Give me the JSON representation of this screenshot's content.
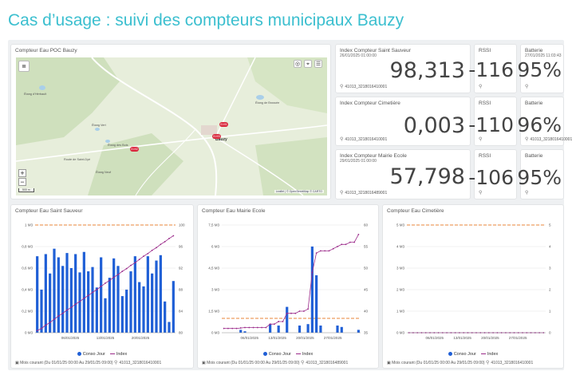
{
  "page_title": "Cas d’usage : suivi des compteurs municipaux Bauzy",
  "map_panel": {
    "title": "Compteur Eau POC Bauzy",
    "labels": [
      "Étang d'Hérbault",
      "Étang Vert",
      "Étang des Bois",
      "Étang Neuf",
      "Étang de Brossée",
      "Bauzy",
      "Route de Saint-Dyé"
    ],
    "markers": [
      "01/01",
      "01/03",
      "01/02"
    ],
    "zoom_in": "+",
    "zoom_out": "−",
    "scale": "500 m",
    "attribution": "Leaflet | © OpenStreetMap © CARTO",
    "controls": [
      "◎",
      "⌖",
      "☰"
    ]
  },
  "counters": [
    {
      "title": "Index Compteur Saint Sauveur",
      "date": "26/01/2025 01:00:00",
      "value": "98,313",
      "device": "41013_3218016410001"
    },
    {
      "title": "Index Compteur Cimetière",
      "date": "",
      "value": "0,003",
      "device": "41013_3218016410001"
    },
    {
      "title": "Index Compteur Mairie Ecole",
      "date": "29/01/2025 01:00:00",
      "value": "57,798",
      "device": "41013_3218016489001"
    }
  ],
  "rssi": [
    {
      "title": "RSSI",
      "value": "-116"
    },
    {
      "title": "RSSI",
      "value": "-110"
    },
    {
      "title": "RSSI",
      "value": "-106"
    }
  ],
  "battery": [
    {
      "title": "Batterie",
      "date": "27/01/2025 11:03:43",
      "value": "95%",
      "device": ""
    },
    {
      "title": "Batterie",
      "date": "",
      "value": "96%",
      "device": "41013_3218016410001"
    },
    {
      "title": "Batterie",
      "date": "",
      "value": "95%",
      "device": ""
    }
  ],
  "legend": {
    "bar_label": "Conso Jour",
    "line_label": "Index"
  },
  "chart_data": [
    {
      "type": "bar",
      "title": "Compteur Eau Saint Sauveur",
      "x_ticks": [
        "06/01/2025",
        "13/01/2025",
        "20/01/2025"
      ],
      "y_left_ticks": [
        "0 M3",
        "0,2 M3",
        "0,4 M3",
        "0,6 M3",
        "0,8 M3",
        "1 M3"
      ],
      "y_right_ticks": [
        "80",
        "84",
        "88",
        "92",
        "96",
        "100"
      ],
      "ylim_left": [
        0,
        1
      ],
      "ylim_right": [
        80,
        100
      ],
      "threshold": 1,
      "series": [
        {
          "name": "Conso Jour",
          "values": [
            0.71,
            0.4,
            0.73,
            0.55,
            0.78,
            0.7,
            0.62,
            0.74,
            0.6,
            0.73,
            0.56,
            0.75,
            0.57,
            0.61,
            0.42,
            0.7,
            0.32,
            0.51,
            0.69,
            0.62,
            0.34,
            0.4,
            0.57,
            0.71,
            0.47,
            0.43,
            0.71,
            0.55,
            0.67,
            0.72,
            0.29,
            0.1,
            0.48
          ]
        },
        {
          "name": "Index",
          "values": [
            80.4,
            80.8,
            81.4,
            81.9,
            82.5,
            83.1,
            83.6,
            84.2,
            84.7,
            85.3,
            85.8,
            86.4,
            86.9,
            87.5,
            88.0,
            88.6,
            89.2,
            89.7,
            90.3,
            90.8,
            91.4,
            91.9,
            92.5,
            93.0,
            93.6,
            94.2,
            94.7,
            95.3,
            95.8,
            96.4,
            96.9,
            97.5,
            98.0
          ]
        }
      ]
    },
    {
      "type": "bar",
      "title": "Compteur Eau Mairie Ecole",
      "x_ticks": [
        "06/01/2025",
        "13/01/2025",
        "20/01/2025",
        "27/01/2025"
      ],
      "y_left_ticks": [
        "0 M3",
        "1,5 M3",
        "3 M3",
        "4,5 M3",
        "6 M3",
        "7,5 M3"
      ],
      "y_right_ticks": [
        "35",
        "40",
        "45",
        "50",
        "55",
        "60"
      ],
      "ylim_left": [
        0,
        7.5
      ],
      "ylim_right": [
        35,
        60
      ],
      "threshold": 1,
      "series": [
        {
          "name": "Conso Jour",
          "values": [
            0,
            0,
            0,
            0,
            0.2,
            0.1,
            0,
            0,
            0,
            0,
            0,
            0.6,
            0,
            0.5,
            0,
            1.8,
            0,
            0,
            0.5,
            0,
            0.6,
            6.0,
            4.0,
            0.5,
            0,
            0,
            0,
            0.5,
            0.4,
            0,
            0,
            0,
            0.2
          ]
        },
        {
          "name": "Index",
          "values": [
            36,
            36,
            36,
            36,
            36.1,
            36.2,
            36.2,
            36.2,
            36.2,
            36.2,
            36.2,
            37,
            37,
            37.6,
            37.6,
            39.5,
            39.5,
            39.5,
            40,
            40,
            40.5,
            49,
            53.5,
            54,
            54,
            54,
            54.5,
            55,
            55.5,
            55.5,
            56,
            56,
            57.8
          ]
        }
      ]
    },
    {
      "type": "bar",
      "title": "Compteur Eau Cimetière",
      "x_ticks": [
        "06/01/2025",
        "13/01/2025",
        "20/01/2025",
        "27/01/2025"
      ],
      "y_left_ticks": [
        "0 M3",
        "1 M3",
        "2 M3",
        "3 M3",
        "4 M3",
        "5 M3"
      ],
      "y_right_ticks": [
        "0",
        "1",
        "2",
        "3",
        "4",
        "5"
      ],
      "ylim_left": [
        0,
        5
      ],
      "ylim_right": [
        0,
        5
      ],
      "threshold": 5,
      "series": [
        {
          "name": "Conso Jour",
          "values": [
            0,
            0,
            0,
            0,
            0,
            0,
            0,
            0,
            0,
            0,
            0,
            0,
            0,
            0,
            0,
            0,
            0,
            0,
            0,
            0,
            0,
            0,
            0,
            0,
            0,
            0,
            0,
            0,
            0,
            0,
            0,
            0,
            0
          ]
        },
        {
          "name": "Index",
          "values": [
            0,
            0,
            0,
            0,
            0,
            0,
            0,
            0,
            0,
            0,
            0,
            0,
            0,
            0,
            0,
            0,
            0,
            0,
            0,
            0,
            0,
            0,
            0,
            0,
            0,
            0,
            0,
            0,
            0,
            0,
            0,
            0,
            0
          ]
        }
      ]
    }
  ],
  "footer": {
    "period": "Mois courant (Du 01/01/25 00:00 Au 29/01/25 09:00)",
    "devices": [
      "41013_3218016410001",
      "41013_3218016489001",
      "41013_3218016410001"
    ]
  },
  "colors": {
    "title": "#3bbfcf",
    "bar": "#1f5fd6",
    "line": "#9b2a8a",
    "threshold": "#e8843a"
  }
}
